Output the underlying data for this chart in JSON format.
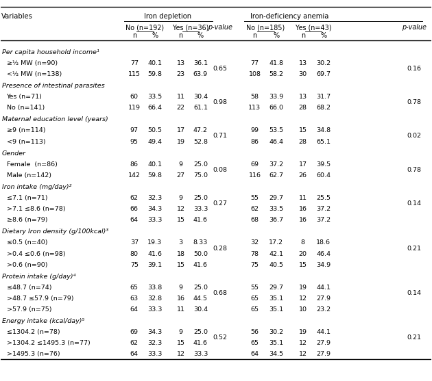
{
  "rows": [
    {
      "label": "Per capita household income¹",
      "category": true
    },
    {
      "label": "≥½ MW (n=90)",
      "id1n": "77",
      "id1p": "40.1",
      "iy1n": "13",
      "iy1p": "36.1",
      "pv1": "",
      "id2n": "77",
      "id2p": "41.8",
      "iy2n": "13",
      "iy2p": "30.2",
      "pv2": ""
    },
    {
      "label": "<½ MW (n=138)",
      "id1n": "115",
      "id1p": "59.8",
      "iy1n": "23",
      "iy1p": "63.9",
      "pv1": "0.65",
      "id2n": "108",
      "id2p": "58.2",
      "iy2n": "30",
      "iy2p": "69.7",
      "pv2": "0.16"
    },
    {
      "label": "Presence of intestinal parasites",
      "category": true
    },
    {
      "label": "Yes (n=71)",
      "id1n": "60",
      "id1p": "33.5",
      "iy1n": "11",
      "iy1p": "30.4",
      "pv1": "",
      "id2n": "58",
      "id2p": "33.9",
      "iy2n": "13",
      "iy2p": "31.7",
      "pv2": ""
    },
    {
      "label": "No (n=141)",
      "id1n": "119",
      "id1p": "66.4",
      "iy1n": "22",
      "iy1p": "61.1",
      "pv1": "0.98",
      "id2n": "113",
      "id2p": "66.0",
      "iy2n": "28",
      "iy2p": "68.2",
      "pv2": "0.78"
    },
    {
      "label": "Maternal education level (years)",
      "category": true
    },
    {
      "label": "≥9 (n=114)",
      "id1n": "97",
      "id1p": "50.5",
      "iy1n": "17",
      "iy1p": "47.2",
      "pv1": "",
      "id2n": "99",
      "id2p": "53.5",
      "iy2n": "15",
      "iy2p": "34.8",
      "pv2": ""
    },
    {
      "label": "<9 (n=113)",
      "id1n": "95",
      "id1p": "49.4",
      "iy1n": "19",
      "iy1p": "52.8",
      "pv1": "0.71",
      "id2n": "86",
      "id2p": "46.4",
      "iy2n": "28",
      "iy2p": "65.1",
      "pv2": "0.02"
    },
    {
      "label": "Gender",
      "category": true
    },
    {
      "label": "Female  (n=86)",
      "id1n": "86",
      "id1p": "40.1",
      "iy1n": "9",
      "iy1p": "25.0",
      "pv1": "",
      "id2n": "69",
      "id2p": "37.2",
      "iy2n": "17",
      "iy2p": "39.5",
      "pv2": ""
    },
    {
      "label": "Male (n=142)",
      "id1n": "142",
      "id1p": "59.8",
      "iy1n": "27",
      "iy1p": "75.0",
      "pv1": "0.08",
      "id2n": "116",
      "id2p": "62.7",
      "iy2n": "26",
      "iy2p": "60.4",
      "pv2": "0.78"
    },
    {
      "label": "Iron intake (mg/day)²",
      "category": true
    },
    {
      "label": "≤7.1 (n=71)",
      "id1n": "62",
      "id1p": "32.3",
      "iy1n": "9",
      "iy1p": "25.0",
      "pv1": "",
      "id2n": "55",
      "id2p": "29.7",
      "iy2n": "11",
      "iy2p": "25.5",
      "pv2": ""
    },
    {
      "label": ">7.1 ≤8.6 (n=78)",
      "id1n": "66",
      "id1p": "34.3",
      "iy1n": "12",
      "iy1p": "33.3",
      "pv1": "0.27",
      "id2n": "62",
      "id2p": "33.5",
      "iy2n": "16",
      "iy2p": "37.2",
      "pv2": "0.14"
    },
    {
      "label": "≥8.6 (n=79)",
      "id1n": "64",
      "id1p": "33.3",
      "iy1n": "15",
      "iy1p": "41.6",
      "pv1": "",
      "id2n": "68",
      "id2p": "36.7",
      "iy2n": "16",
      "iy2p": "37.2",
      "pv2": ""
    },
    {
      "label": "Dietary Iron density (g/100kcal)³",
      "category": true
    },
    {
      "label": "≤0.5 (n=40)",
      "id1n": "37",
      "id1p": "19.3",
      "iy1n": "3",
      "iy1p": "8.33",
      "pv1": "",
      "id2n": "32",
      "id2p": "17.2",
      "iy2n": "8",
      "iy2p": "18.6",
      "pv2": ""
    },
    {
      "label": ">0.4 ≤0.6 (n=98)",
      "id1n": "80",
      "id1p": "41.6",
      "iy1n": "18",
      "iy1p": "50.0",
      "pv1": "0.28",
      "id2n": "78",
      "id2p": "42.1",
      "iy2n": "20",
      "iy2p": "46.4",
      "pv2": "0.21"
    },
    {
      "label": ">0.6 (n=90)",
      "id1n": "75",
      "id1p": "39.1",
      "iy1n": "15",
      "iy1p": "41.6",
      "pv1": "",
      "id2n": "75",
      "id2p": "40.5",
      "iy2n": "15",
      "iy2p": "34.9",
      "pv2": ""
    },
    {
      "label": "Protein intake (g/day)⁴",
      "category": true
    },
    {
      "label": "≤48.7 (n=74)",
      "id1n": "65",
      "id1p": "33.8",
      "iy1n": "9",
      "iy1p": "25.0",
      "pv1": "",
      "id2n": "55",
      "id2p": "29.7",
      "iy2n": "19",
      "iy2p": "44.1",
      "pv2": ""
    },
    {
      "label": ">48.7 ≤57.9 (n=79)",
      "id1n": "63",
      "id1p": "32.8",
      "iy1n": "16",
      "iy1p": "44.5",
      "pv1": "0.68",
      "id2n": "65",
      "id2p": "35.1",
      "iy2n": "12",
      "iy2p": "27.9",
      "pv2": "0.14"
    },
    {
      "label": ">57.9 (n=75)",
      "id1n": "64",
      "id1p": "33.3",
      "iy1n": "11",
      "iy1p": "30.4",
      "pv1": "",
      "id2n": "65",
      "id2p": "35.1",
      "iy2n": "10",
      "iy2p": "23.2",
      "pv2": ""
    },
    {
      "label": "Energy intake (kcal/day)⁵",
      "category": true
    },
    {
      "label": "≤1304.2 (n=78)",
      "id1n": "69",
      "id1p": "34.3",
      "iy1n": "9",
      "iy1p": "25.0",
      "pv1": "",
      "id2n": "56",
      "id2p": "30.2",
      "iy2n": "19",
      "iy2p": "44.1",
      "pv2": ""
    },
    {
      "label": ">1304.2 ≤1495.3 (n=77)",
      "id1n": "62",
      "id1p": "32.3",
      "iy1n": "15",
      "iy1p": "41.6",
      "pv1": "0.52",
      "id2n": "65",
      "id2p": "35.1",
      "iy2n": "12",
      "iy2p": "27.9",
      "pv2": "0.21"
    },
    {
      "label": ">1495.3 (n=76)",
      "id1n": "64",
      "id1p": "33.3",
      "iy1n": "12",
      "iy1p": "33.3",
      "pv1": "",
      "id2n": "64",
      "id2p": "34.5",
      "iy2n": "12",
      "iy2p": "27.9",
      "pv2": ""
    }
  ],
  "col_x": {
    "label": 0.001,
    "id1n": 0.298,
    "id1p": 0.346,
    "iy1n": 0.406,
    "iy1p": 0.452,
    "pv1": 0.51,
    "id2n": 0.578,
    "id2p": 0.628,
    "iy2n": 0.69,
    "iy2p": 0.738,
    "pv2": 0.96
  },
  "bg_color": "#ffffff",
  "text_color": "#000000",
  "fontsize_header": 7.2,
  "fontsize_body": 6.8,
  "fontsize_category": 6.8
}
